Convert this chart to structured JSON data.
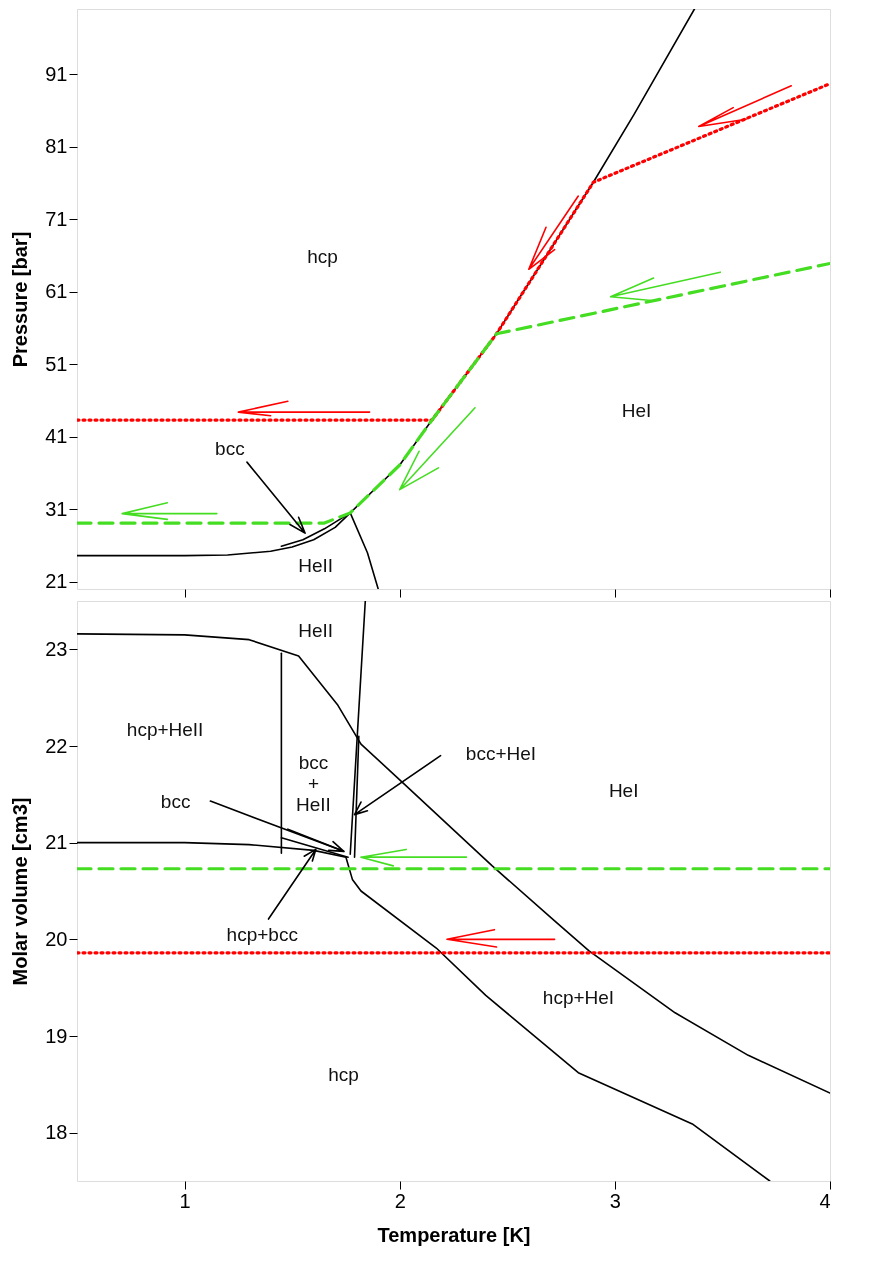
{
  "chart_data": [
    {
      "type": "line",
      "ylabel": "Pressure [bar]",
      "xlim": [
        0.5,
        4
      ],
      "xticks": [
        1,
        2,
        3,
        4
      ],
      "ylim": [
        20,
        100
      ],
      "yticks": [
        21,
        31,
        41,
        51,
        61,
        71,
        81,
        91
      ],
      "grid": false,
      "tick_labels": "y",
      "series": [
        {
          "color": "#000000",
          "line_style": "solid",
          "x": [
            0.5,
            1.0,
            1.2,
            1.4,
            1.5,
            1.6,
            1.7,
            1.77,
            2.0,
            2.15,
            2.45,
            2.9,
            3.09,
            3.37
          ],
          "values": [
            24.6,
            24.6,
            24.7,
            25.2,
            25.8,
            26.8,
            28.5,
            30.5,
            37.1,
            43.3,
            55.2,
            76.1,
            85.5,
            100
          ]
        },
        {
          "color": "#000000",
          "line_style": "solid",
          "x": [
            1.45,
            1.55,
            1.65,
            1.77
          ],
          "values": [
            25.9,
            26.8,
            28.3,
            30.5
          ]
        },
        {
          "color": "#000000",
          "line_style": "solid",
          "x": [
            1.77,
            1.85,
            1.9
          ],
          "values": [
            30.5,
            25,
            20
          ]
        },
        {
          "color": "#ff0000",
          "line_style": "dotted",
          "x": [
            0.5,
            2.15,
            2.45,
            2.9,
            4.0
          ],
          "values": [
            43.3,
            43.3,
            55.2,
            76.1,
            89.7
          ]
        },
        {
          "color": "#44dd22",
          "line_style": "dashed",
          "x": [
            0.5,
            1.65,
            1.77,
            2.0,
            2.15,
            2.45,
            4.0
          ],
          "values": [
            29.1,
            29.1,
            30.5,
            37.1,
            43.3,
            55.2,
            64.9
          ]
        },
        {
          "color": "#ff0000",
          "line_style": "solid",
          "x": [
            3.55,
            3.39,
            3.61,
            3.39,
            3.82
          ],
          "values": [
            86.4,
            83.8,
            84.8,
            83.8,
            89.4
          ]
        },
        {
          "color": "#ff0000",
          "line_style": "solid",
          "x": [
            2.68,
            2.6,
            2.72,
            2.6,
            2.83
          ],
          "values": [
            69.9,
            64.1,
            66.8,
            64.1,
            74.2
          ]
        },
        {
          "color": "#44dd22",
          "line_style": "solid",
          "x": [
            3.18,
            2.98,
            3.17,
            2.98,
            3.49
          ],
          "values": [
            62.9,
            60.3,
            59.8,
            60.3,
            63.7
          ]
        },
        {
          "color": "#ff0000",
          "line_style": "solid",
          "x": [
            1.48,
            1.25,
            1.4,
            1.25,
            1.86
          ],
          "values": [
            45.9,
            44.4,
            43.9,
            44.4,
            44.4
          ]
        },
        {
          "color": "#44dd22",
          "line_style": "solid",
          "x": [
            2.09,
            2.0,
            2.18,
            2.0,
            2.35
          ],
          "values": [
            39.0,
            33.7,
            36.7,
            33.7,
            45.0
          ]
        },
        {
          "color": "#44dd22",
          "line_style": "solid",
          "x": [
            0.92,
            0.71,
            0.92,
            0.71,
            1.15
          ],
          "values": [
            31.9,
            30.4,
            29.6,
            30.4,
            30.4
          ]
        },
        {
          "color": "#000000",
          "line_style": "solid",
          "x": [
            1.53,
            1.56,
            1.49,
            1.56,
            1.29
          ],
          "values": [
            29.9,
            27.7,
            28.9,
            27.7,
            37.5
          ]
        }
      ],
      "annotations": [
        "hcp",
        "HeI",
        "bcc",
        "HeII"
      ]
    },
    {
      "type": "line",
      "xlabel": "Temperature [K]",
      "ylabel": "Molar volume [cm3]",
      "xlim": [
        0.5,
        4
      ],
      "xticks": [
        1,
        2,
        3,
        4
      ],
      "ylim": [
        17.5,
        23.5
      ],
      "yticks": [
        18,
        19,
        20,
        21,
        22,
        23
      ],
      "grid": false,
      "series": [
        {
          "color": "#000000",
          "line_style": "solid",
          "x": [
            0.5,
            1.0,
            1.3,
            1.53,
            1.71,
            1.82,
            2.0,
            2.43,
            2.72,
            2.88,
            3.28,
            3.62,
            4.0
          ],
          "values": [
            23.16,
            23.15,
            23.1,
            22.93,
            22.43,
            22.02,
            21.65,
            20.76,
            20.19,
            19.88,
            19.24,
            18.8,
            18.41
          ]
        },
        {
          "color": "#000000",
          "line_style": "solid",
          "x": [
            0.5,
            1.0,
            1.3,
            1.6,
            1.75,
            1.78,
            1.82,
            2.17,
            2.4,
            2.83,
            3.36,
            3.72
          ],
          "values": [
            21.0,
            21.0,
            20.98,
            20.92,
            20.85,
            20.62,
            20.5,
            19.91,
            19.42,
            18.62,
            18.09,
            17.5
          ]
        },
        {
          "color": "#000000",
          "line_style": "solid",
          "x": [
            1.45,
            1.45
          ],
          "values": [
            22.96,
            20.89
          ]
        },
        {
          "color": "#000000",
          "line_style": "solid",
          "x": [
            1.84,
            1.77
          ],
          "values": [
            23.5,
            20.88
          ]
        },
        {
          "color": "#000000",
          "line_style": "solid",
          "x": [
            1.79,
            1.81
          ],
          "values": [
            20.85,
            22.1
          ]
        },
        {
          "color": "#000000",
          "line_style": "solid",
          "x": [
            1.48,
            1.74
          ],
          "values": [
            21.14,
            20.91
          ]
        },
        {
          "color": "#000000",
          "line_style": "solid",
          "x": [
            1.45,
            1.76
          ],
          "values": [
            21.05,
            20.85
          ]
        },
        {
          "color": "#44dd22",
          "line_style": "dashed",
          "x": [
            0.5,
            4.0
          ],
          "values": [
            20.73,
            20.73
          ]
        },
        {
          "color": "#ff0000",
          "line_style": "dotted",
          "x": [
            0.5,
            4.0
          ],
          "values": [
            19.86,
            19.86
          ]
        },
        {
          "color": "#44dd22",
          "line_style": "solid",
          "x": [
            2.03,
            1.82,
            1.97,
            1.82,
            2.31
          ],
          "values": [
            20.93,
            20.85,
            20.76,
            20.85,
            20.85
          ]
        },
        {
          "color": "#ff0000",
          "line_style": "solid",
          "x": [
            2.44,
            2.22,
            2.45,
            2.22,
            2.72
          ],
          "values": [
            20.1,
            20.0,
            19.92,
            20.0,
            20.0
          ]
        },
        {
          "color": "#000000",
          "line_style": "solid",
          "x": [
            1.85,
            1.79,
            1.82,
            1.79,
            2.19
          ],
          "values": [
            21.33,
            21.29,
            21.42,
            21.29,
            21.9
          ]
        },
        {
          "color": "#000000",
          "line_style": "solid",
          "x": [
            1.67,
            1.74,
            1.69,
            1.74,
            1.12
          ],
          "values": [
            20.92,
            20.91,
            21.01,
            20.91,
            21.43
          ]
        },
        {
          "color": "#000000",
          "line_style": "solid",
          "x": [
            1.594,
            1.61,
            1.556,
            1.61,
            1.39
          ],
          "values": [
            20.81,
            20.93,
            20.86,
            20.93,
            20.21
          ]
        }
      ],
      "annotations": [
        "HeII",
        "hcp+HeII",
        "bcc\n+\nHeII",
        "bcc+HeI",
        "HeI",
        "bcc",
        "hcp+bcc",
        "hcp+HeI",
        "hcp"
      ]
    }
  ]
}
